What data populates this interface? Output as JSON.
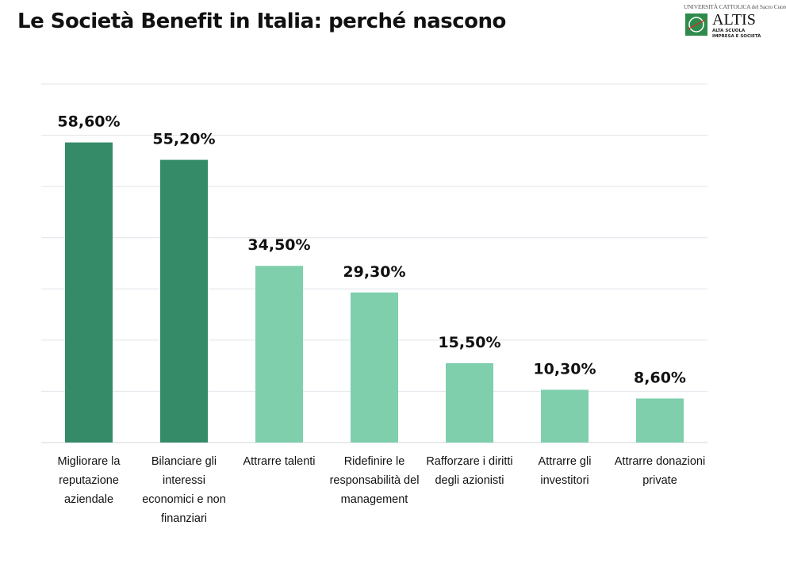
{
  "title": "Le Società Benefit in Italia: perché nascono",
  "logo": {
    "university": "UNIVERSITÀ CATTOLICA del Sacro Cuore",
    "name": "ALTIS",
    "subtitle": "ALTA SCUOLA IMPRESA E SOCIETÀ"
  },
  "chart_data": {
    "type": "bar",
    "title": "",
    "categories": [
      "Migliorare la reputazione aziendale",
      "Bilanciare gli interessi economici e non finanziari",
      "Attrarre talenti",
      "Ridefinire le responsabilità del management",
      "Rafforzare i diritti degli azionisti",
      "Attrarre gli investitori",
      "Attrarre donazioni private"
    ],
    "values": [
      58.6,
      55.2,
      34.5,
      29.3,
      15.5,
      10.3,
      8.6
    ],
    "data_labels": [
      "58,60%",
      "55,20%",
      "34,50%",
      "29,30%",
      "15,50%",
      "10,30%",
      "8,60%"
    ],
    "colors": [
      "#358a68",
      "#358a68",
      "#7fcfad",
      "#7fcfad",
      "#7fcfad",
      "#7fcfad",
      "#7fcfad"
    ],
    "ylim": [
      0,
      70
    ],
    "y_step": 10,
    "grid": true,
    "y_axis_labels_shown": false,
    "legend": "none"
  }
}
